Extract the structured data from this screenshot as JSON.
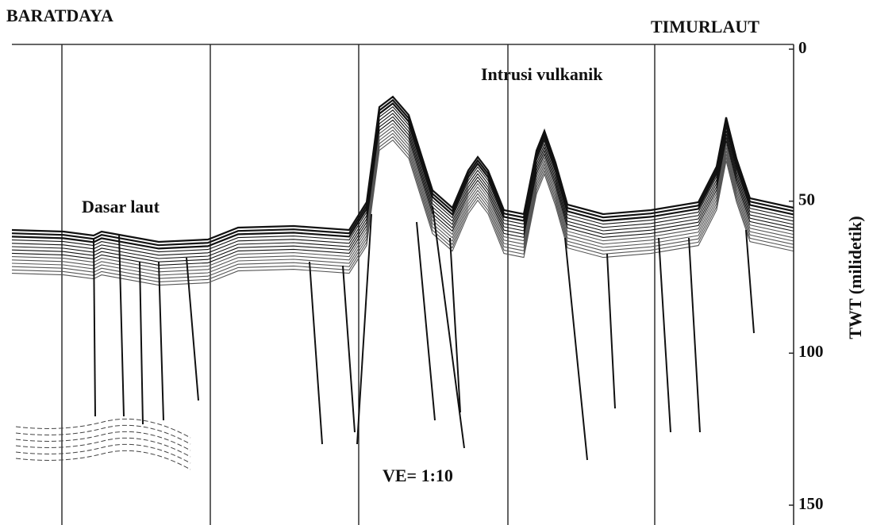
{
  "header": {
    "left": "BARATDAYA",
    "right": "TIMURLAUT"
  },
  "annotations": {
    "seafloor": "Dasar laut",
    "intrusion": "Intrusi vulkanik",
    "scale": "VE= 1:10"
  },
  "axis": {
    "label": "TWT (milidetik)",
    "ticks": [
      0,
      50,
      100,
      150
    ]
  }
}
